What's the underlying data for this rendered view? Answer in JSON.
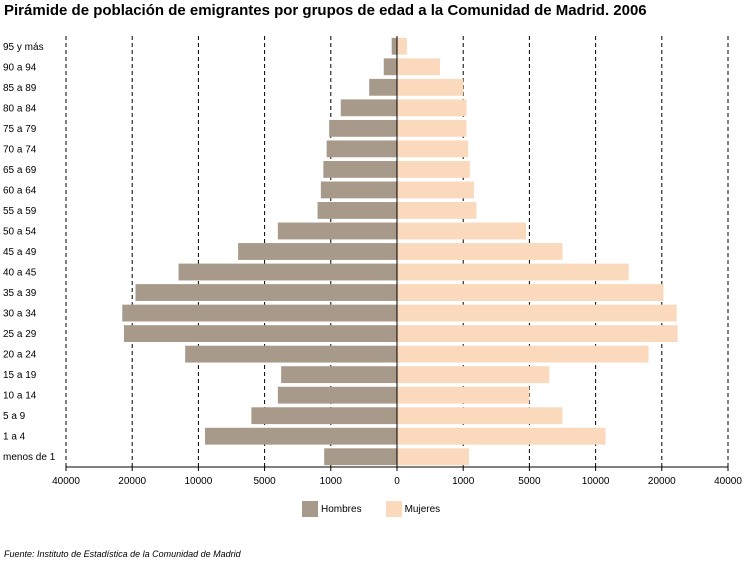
{
  "chart_data": {
    "type": "bar",
    "orientation": "horizontal-pyramid",
    "title": "Pirámide de población de emigrantes por grupos de edad a la Comunidad de Madrid. 2006",
    "categories": [
      "95 y más",
      "90 a 94",
      "85 a 89",
      "80 a 84",
      "75 a 79",
      "70 a 74",
      "65 a 69",
      "60 a 64",
      "55 a 59",
      "50 a 54",
      "45 a 49",
      "40 a 45",
      "35 a 39",
      "30 a 34",
      "25 a 29",
      "20 a 24",
      "15 a 19",
      "10 a 14",
      "5 a 9",
      "1 a 4",
      "menos de 1"
    ],
    "series": [
      {
        "name": "Hombres",
        "color": "#a89a8a",
        "values": [
          80,
          200,
          420,
          850,
          1100,
          1250,
          1450,
          1600,
          1800,
          4200,
          7000,
          13000,
          19500,
          23000,
          22500,
          12000,
          4000,
          4200,
          6000,
          9500,
          1400
        ]
      },
      {
        "name": "Mujeres",
        "color": "#fad9bd",
        "values": [
          150,
          650,
          1000,
          1200,
          1200,
          1300,
          1400,
          1650,
          1800,
          4800,
          7500,
          15000,
          20500,
          24500,
          24800,
          18000,
          6500,
          5000,
          7500,
          11500,
          1350
        ]
      }
    ],
    "xticks": [
      "40000",
      "20000",
      "10000",
      "5000",
      "1000",
      "0",
      "1000",
      "5000",
      "10000",
      "20000",
      "40000"
    ],
    "xscale": "symmetric-piecewise",
    "scale_breaks": [
      0,
      1000,
      5000,
      10000,
      20000,
      40000
    ],
    "grid": "vertical-dashed",
    "legend_position": "bottom-center"
  },
  "source_prefix": "Fuente:",
  "source_text": "Instituto de Estadística de la Comunidad de Madrid"
}
